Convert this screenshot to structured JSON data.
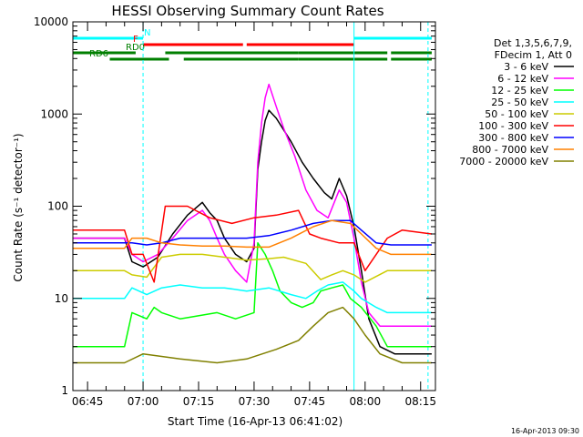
{
  "chart_data": {
    "type": "line",
    "title": "HESSI Observing Summary Count Rates",
    "xlabel": "Start Time (16-Apr-13 06:41:02)",
    "ylabel": "Count Rate (s⁻¹ detector⁻¹)",
    "x_ticks": [
      "06:45",
      "07:00",
      "07:15",
      "07:30",
      "07:45",
      "08:00",
      "08:15"
    ],
    "y_ticks": [
      "1",
      "10",
      "100",
      "1000",
      "10000"
    ],
    "ylim": [
      1,
      10000
    ],
    "y_scale": "log",
    "xlim": [
      "06:41:02",
      "08:19:00"
    ],
    "legend_header": [
      "Det 1,3,5,6,7,9,",
      "FDecim 1, Att 0"
    ],
    "legend_position": "right",
    "timestamp": "16-Apr-2013 09:30",
    "flags": [
      {
        "label": "N",
        "color": "#00ffff",
        "segments": [
          [
            "06:41",
            "07:00"
          ],
          [
            "07:57",
            "08:18"
          ]
        ]
      },
      {
        "label": "F",
        "color": "#ff0000",
        "segments": [
          [
            "07:00",
            "07:27"
          ],
          [
            "07:28",
            "07:57"
          ]
        ]
      },
      {
        "label": "RD0",
        "color": "#007f00",
        "segments": [
          [
            "06:41",
            "06:58"
          ],
          [
            "07:06",
            "07:42"
          ],
          [
            "07:42",
            "08:06"
          ],
          [
            "08:07",
            "08:18"
          ]
        ]
      },
      {
        "label": "RD6",
        "color": "#007f00",
        "segments": [
          [
            "06:51",
            "07:07"
          ],
          [
            "07:11",
            "07:42"
          ],
          [
            "07:42",
            "08:06"
          ],
          [
            "08:07",
            "08:18"
          ]
        ]
      }
    ],
    "vertical_markers": [
      {
        "time": "07:00",
        "style": "dashed",
        "color": "#00ffff"
      },
      {
        "time": "07:57",
        "style": "solid",
        "color": "#00ffff"
      },
      {
        "time": "08:17",
        "style": "dashed",
        "color": "#00ffff"
      }
    ],
    "series": [
      {
        "name": "3 - 6 keV",
        "color": "#000000",
        "points": [
          [
            "06:41",
            45
          ],
          [
            "06:55",
            45
          ],
          [
            "06:57",
            25
          ],
          [
            "07:00",
            22
          ],
          [
            "07:04",
            28
          ],
          [
            "07:08",
            50
          ],
          [
            "07:12",
            80
          ],
          [
            "07:16",
            110
          ],
          [
            "07:18",
            85
          ],
          [
            "07:20",
            70
          ],
          [
            "07:22",
            45
          ],
          [
            "07:25",
            30
          ],
          [
            "07:28",
            25
          ],
          [
            "07:30",
            35
          ],
          [
            "07:31",
            250
          ],
          [
            "07:32",
            500
          ],
          [
            "07:33",
            850
          ],
          [
            "07:34",
            1100
          ],
          [
            "07:36",
            900
          ],
          [
            "07:40",
            500
          ],
          [
            "07:43",
            300
          ],
          [
            "07:46",
            200
          ],
          [
            "07:49",
            140
          ],
          [
            "07:51",
            120
          ],
          [
            "07:53",
            200
          ],
          [
            "07:55",
            130
          ],
          [
            "07:57",
            60
          ],
          [
            "07:59",
            20
          ],
          [
            "08:01",
            6
          ],
          [
            "08:04",
            3
          ],
          [
            "08:08",
            2.5
          ],
          [
            "08:18",
            2.5
          ]
        ]
      },
      {
        "name": "6 - 12 keV",
        "color": "#ff00ff",
        "points": [
          [
            "06:41",
            45
          ],
          [
            "06:55",
            45
          ],
          [
            "06:57",
            30
          ],
          [
            "07:00",
            25
          ],
          [
            "07:04",
            30
          ],
          [
            "07:08",
            45
          ],
          [
            "07:12",
            70
          ],
          [
            "07:16",
            90
          ],
          [
            "07:18",
            70
          ],
          [
            "07:20",
            45
          ],
          [
            "07:22",
            30
          ],
          [
            "07:25",
            20
          ],
          [
            "07:28",
            15
          ],
          [
            "07:30",
            40
          ],
          [
            "07:31",
            300
          ],
          [
            "07:32",
            800
          ],
          [
            "07:33",
            1500
          ],
          [
            "07:34",
            2100
          ],
          [
            "07:36",
            1200
          ],
          [
            "07:38",
            700
          ],
          [
            "07:41",
            350
          ],
          [
            "07:44",
            150
          ],
          [
            "07:47",
            90
          ],
          [
            "07:50",
            75
          ],
          [
            "07:53",
            150
          ],
          [
            "07:55",
            110
          ],
          [
            "07:57",
            45
          ],
          [
            "07:59",
            15
          ],
          [
            "08:01",
            7
          ],
          [
            "08:04",
            5
          ],
          [
            "08:08",
            5
          ],
          [
            "08:18",
            5
          ]
        ]
      },
      {
        "name": "12 - 25 keV",
        "color": "#00ff00",
        "points": [
          [
            "06:41",
            3
          ],
          [
            "06:55",
            3
          ],
          [
            "06:57",
            7
          ],
          [
            "07:01",
            6
          ],
          [
            "07:03",
            8
          ],
          [
            "07:05",
            7
          ],
          [
            "07:10",
            6
          ],
          [
            "07:20",
            7
          ],
          [
            "07:25",
            6
          ],
          [
            "07:30",
            7
          ],
          [
            "07:31",
            40
          ],
          [
            "07:33",
            30
          ],
          [
            "07:35",
            20
          ],
          [
            "07:37",
            12
          ],
          [
            "07:40",
            9
          ],
          [
            "07:43",
            8
          ],
          [
            "07:46",
            9
          ],
          [
            "07:48",
            12
          ],
          [
            "07:51",
            13
          ],
          [
            "07:54",
            14
          ],
          [
            "07:56",
            10
          ],
          [
            "07:59",
            8
          ],
          [
            "08:03",
            5
          ],
          [
            "08:06",
            3
          ],
          [
            "08:18",
            3
          ]
        ]
      },
      {
        "name": "25 - 50 keV",
        "color": "#00ffff",
        "points": [
          [
            "06:41",
            10
          ],
          [
            "06:55",
            10
          ],
          [
            "06:57",
            13
          ],
          [
            "07:01",
            11
          ],
          [
            "07:05",
            13
          ],
          [
            "07:10",
            14
          ],
          [
            "07:16",
            13
          ],
          [
            "07:22",
            13
          ],
          [
            "07:28",
            12
          ],
          [
            "07:34",
            13
          ],
          [
            "07:40",
            11
          ],
          [
            "07:44",
            10
          ],
          [
            "07:47",
            12
          ],
          [
            "07:50",
            14
          ],
          [
            "07:54",
            15
          ],
          [
            "07:57",
            12
          ],
          [
            "07:59",
            10
          ],
          [
            "08:03",
            8
          ],
          [
            "08:06",
            7
          ],
          [
            "08:18",
            7
          ]
        ]
      },
      {
        "name": "50 - 100 keV",
        "color": "#cccc00",
        "points": [
          [
            "06:41",
            20
          ],
          [
            "06:55",
            20
          ],
          [
            "06:57",
            18
          ],
          [
            "07:01",
            17
          ],
          [
            "07:05",
            28
          ],
          [
            "07:10",
            30
          ],
          [
            "07:16",
            30
          ],
          [
            "07:22",
            28
          ],
          [
            "07:28",
            26
          ],
          [
            "07:34",
            27
          ],
          [
            "07:38",
            28
          ],
          [
            "07:44",
            24
          ],
          [
            "07:48",
            16
          ],
          [
            "07:51",
            18
          ],
          [
            "07:54",
            20
          ],
          [
            "07:57",
            18
          ],
          [
            "08:00",
            15
          ],
          [
            "08:06",
            20
          ],
          [
            "08:18",
            20
          ]
        ]
      },
      {
        "name": "100 - 300 keV",
        "color": "#ff0000",
        "points": [
          [
            "06:41",
            55
          ],
          [
            "06:55",
            55
          ],
          [
            "06:57",
            30
          ],
          [
            "07:00",
            30
          ],
          [
            "07:03",
            15
          ],
          [
            "07:06",
            100
          ],
          [
            "07:12",
            100
          ],
          [
            "07:18",
            75
          ],
          [
            "07:24",
            65
          ],
          [
            "07:30",
            75
          ],
          [
            "07:36",
            80
          ],
          [
            "07:42",
            90
          ],
          [
            "07:45",
            50
          ],
          [
            "07:48",
            45
          ],
          [
            "07:53",
            40
          ],
          [
            "07:57",
            40
          ],
          [
            "08:00",
            20
          ],
          [
            "08:06",
            45
          ],
          [
            "08:10",
            55
          ],
          [
            "08:18",
            50
          ]
        ]
      },
      {
        "name": "300 - 800 keV",
        "color": "#0000ff",
        "points": [
          [
            "06:41",
            40
          ],
          [
            "06:55",
            40
          ],
          [
            "06:57",
            40
          ],
          [
            "07:01",
            38
          ],
          [
            "07:05",
            40
          ],
          [
            "07:10",
            45
          ],
          [
            "07:16",
            45
          ],
          [
            "07:22",
            45
          ],
          [
            "07:28",
            45
          ],
          [
            "07:34",
            48
          ],
          [
            "07:40",
            55
          ],
          [
            "07:46",
            65
          ],
          [
            "07:51",
            70
          ],
          [
            "07:56",
            70
          ],
          [
            "07:59",
            55
          ],
          [
            "08:03",
            40
          ],
          [
            "08:07",
            38
          ],
          [
            "08:18",
            38
          ]
        ]
      },
      {
        "name": "800 - 7000 keV",
        "color": "#ff8000",
        "points": [
          [
            "06:41",
            35
          ],
          [
            "06:55",
            35
          ],
          [
            "06:57",
            45
          ],
          [
            "07:01",
            45
          ],
          [
            "07:05",
            40
          ],
          [
            "07:10",
            38
          ],
          [
            "07:16",
            37
          ],
          [
            "07:22",
            37
          ],
          [
            "07:28",
            36
          ],
          [
            "07:34",
            36
          ],
          [
            "07:40",
            45
          ],
          [
            "07:46",
            60
          ],
          [
            "07:51",
            70
          ],
          [
            "07:56",
            65
          ],
          [
            "07:59",
            50
          ],
          [
            "08:03",
            35
          ],
          [
            "08:07",
            30
          ],
          [
            "08:18",
            30
          ]
        ]
      },
      {
        "name": "7000 - 20000 keV",
        "color": "#808000",
        "points": [
          [
            "06:41",
            2
          ],
          [
            "06:55",
            2
          ],
          [
            "07:00",
            2.5
          ],
          [
            "07:10",
            2.2
          ],
          [
            "07:20",
            2
          ],
          [
            "07:28",
            2.2
          ],
          [
            "07:36",
            2.8
          ],
          [
            "07:42",
            3.5
          ],
          [
            "07:46",
            5
          ],
          [
            "07:50",
            7
          ],
          [
            "07:54",
            8
          ],
          [
            "07:57",
            6
          ],
          [
            "08:00",
            4
          ],
          [
            "08:04",
            2.5
          ],
          [
            "08:10",
            2
          ],
          [
            "08:18",
            2
          ]
        ]
      }
    ]
  }
}
